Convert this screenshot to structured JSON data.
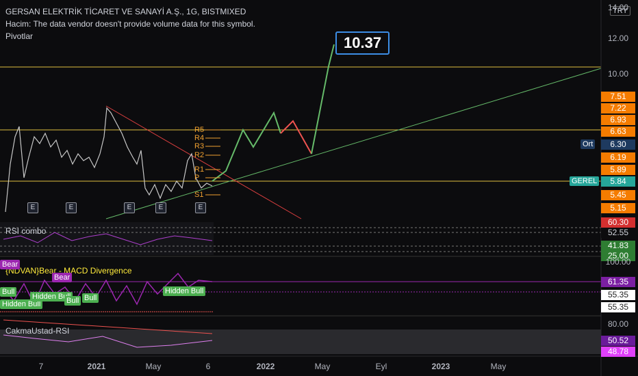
{
  "header": {
    "title": "GERSAN ELEKTRİK TİCARET VE SANAYİ A.Ş., 1G, BISTMIXED",
    "volume_note": "Hacim: The data vendor doesn't provide volume data for this symbol.",
    "pivots": "Pivotlar",
    "currency": "TRY"
  },
  "target": "10.37",
  "price_axis": [
    "14.00",
    "12.00",
    "10.00",
    "7.51",
    "7.22",
    "6.93",
    "6.63",
    "6.30",
    "6.19",
    "5.89",
    "5.84",
    "5.45",
    "5.15"
  ],
  "avg_tag": "Ort",
  "symbol_tag": "GEREL",
  "pivot_levels": [
    "R5",
    "R4",
    "R3",
    "R2",
    "R1",
    "P",
    "S1"
  ],
  "earnings": [
    "E",
    "E",
    "E",
    "E",
    "E"
  ],
  "rsi": {
    "name": "RSI combo",
    "labels": [
      "60.30",
      "52.55",
      "41.83",
      "25.00"
    ]
  },
  "macd": {
    "name": "{NDVAN}Bear - MACD Divergence",
    "labels": [
      "100.00",
      "61.35",
      "55.35",
      "55.35"
    ],
    "tags": [
      "Bear",
      "Bear",
      "Bull",
      "Hidden Bull",
      "Hidden Bull",
      "Bull",
      "Bull",
      "Hidden Bull"
    ]
  },
  "cakma": {
    "name": "CakmaUstad-RSI",
    "labels": [
      "80.00",
      "50.52",
      "48.78"
    ]
  },
  "time_axis": [
    "7",
    "2021",
    "May",
    "6",
    "2022",
    "May",
    "Eyl",
    "2023",
    "May"
  ]
}
